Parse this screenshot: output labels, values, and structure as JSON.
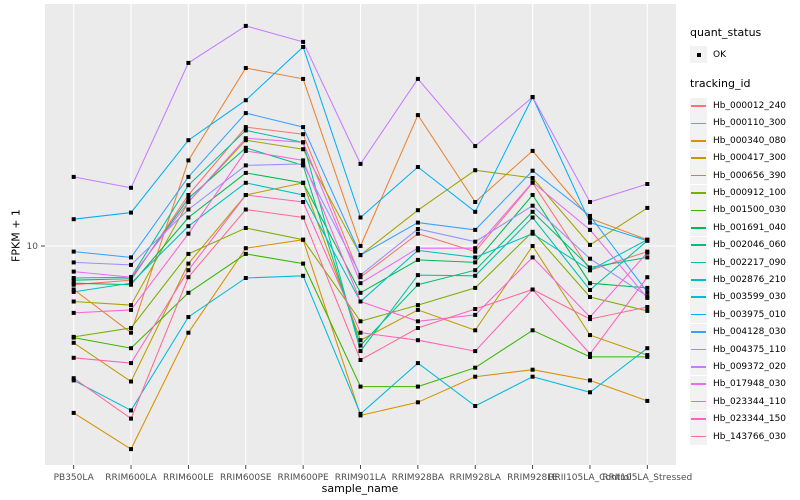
{
  "figure": {
    "background": "#FFFFFF",
    "panel_background": "#EBEBEB",
    "grid_color": "#FFFFFF",
    "tick_color": "#333333",
    "tick_label_color": "#4D4D4D",
    "marker_color": "#000000",
    "legend_key_background": "#F2F2F2"
  },
  "legend": {
    "quant_status_title": "quant_status",
    "quant_status_items": [
      {
        "label": "OK",
        "glyph": "point"
      }
    ],
    "tracking_id_title": "tracking_id"
  },
  "chart_data": {
    "type": "line",
    "title": "",
    "xlabel": "sample_name",
    "ylabel": "FPKM + 1",
    "y_scale": "log10",
    "ylim": [
      1.3,
      91
    ],
    "y_ticks": [
      {
        "value": 10,
        "label": "10"
      }
    ],
    "grid": "major",
    "legend_position": "right",
    "marker": "black-square",
    "categories": [
      "PB350LA",
      "RRIM600LA",
      "RRIM600LE",
      "RRIM600SE",
      "RRIM600PE",
      "RRIM901LA",
      "RRIM928BA",
      "RRIM928LA",
      "RRIM928LE",
      "RRII105LA_Control",
      "RRII105LA_Stressed"
    ],
    "series": [
      {
        "name": "Hb_000012_240",
        "color": "#F8766D",
        "values": [
          7.0,
          7.3,
          16.0,
          29.9,
          28.0,
          7.5,
          11.2,
          9.5,
          17.9,
          8.0,
          9.5
        ]
      },
      {
        "name": "Hb_000110_300",
        "color": "#EA8331",
        "values": [
          6.7,
          4.5,
          22.0,
          51.5,
          46.6,
          10.0,
          33.4,
          15.0,
          24.0,
          12.9,
          10.6
        ]
      },
      {
        "name": "Hb_000340_080",
        "color": "#D89000",
        "values": [
          2.15,
          1.54,
          4.5,
          9.8,
          10.6,
          2.1,
          2.37,
          3.0,
          3.2,
          2.9,
          2.4
        ]
      },
      {
        "name": "Hb_000417_300",
        "color": "#C09B00",
        "values": [
          4.1,
          2.87,
          8.5,
          16.0,
          17.9,
          4.2,
          5.55,
          4.6,
          10.0,
          4.4,
          3.66
        ]
      },
      {
        "name": "Hb_000656_390",
        "color": "#A3A500",
        "values": [
          6.0,
          5.8,
          15.0,
          26.5,
          24.4,
          9.2,
          13.9,
          20.1,
          18.7,
          10.1,
          14.2
        ]
      },
      {
        "name": "Hb_000912_100",
        "color": "#7CAE00",
        "values": [
          4.33,
          4.7,
          9.3,
          11.8,
          10.6,
          5.0,
          5.8,
          6.8,
          11.4,
          6.25,
          5.5
        ]
      },
      {
        "name": "Hb_001500_030",
        "color": "#39B600",
        "values": [
          4.3,
          3.9,
          6.5,
          9.3,
          8.5,
          2.74,
          2.74,
          3.26,
          4.6,
          3.6,
          3.6
        ]
      },
      {
        "name": "Hb_001691_040",
        "color": "#00BB4E",
        "values": [
          7.1,
          7.0,
          13.0,
          19.6,
          17.9,
          6.5,
          8.8,
          8.6,
          16.0,
          7.1,
          6.8
        ]
      },
      {
        "name": "Hb_002046_060",
        "color": "#00BF7D",
        "values": [
          7.3,
          7.4,
          15.5,
          24.7,
          21.0,
          4.0,
          7.0,
          8.0,
          13.7,
          8.2,
          9.0
        ]
      },
      {
        "name": "Hb_002217_090",
        "color": "#00C1A3",
        "values": [
          7.45,
          7.5,
          17.5,
          29.0,
          26.0,
          3.8,
          7.65,
          7.6,
          13.0,
          6.67,
          10.5
        ]
      },
      {
        "name": "Hb_002876_210",
        "color": "#00BFC4",
        "values": [
          6.55,
          7.1,
          12.0,
          17.9,
          16.0,
          6.0,
          9.6,
          9.0,
          11.2,
          8.0,
          10.6
        ]
      },
      {
        "name": "Hb_003599_030",
        "color": "#00BAE0",
        "values": [
          2.9,
          2.2,
          5.2,
          7.45,
          7.6,
          2.13,
          3.4,
          2.29,
          3.0,
          2.6,
          3.9
        ]
      },
      {
        "name": "Hb_003975_010",
        "color": "#00B0F6",
        "values": [
          12.8,
          13.6,
          26.5,
          38.3,
          62.5,
          13.0,
          20.7,
          13.7,
          39.4,
          12.4,
          10.5
        ]
      },
      {
        "name": "Hb_004128_030",
        "color": "#35A2FF",
        "values": [
          9.5,
          9.0,
          18.9,
          34.0,
          29.9,
          9.2,
          12.4,
          11.6,
          20.0,
          13.2,
          6.54
        ]
      },
      {
        "name": "Hb_004375_110",
        "color": "#9590FF",
        "values": [
          8.6,
          8.4,
          14.0,
          21.0,
          21.3,
          7.65,
          11.7,
          10.4,
          14.5,
          8.9,
          6.3
        ]
      },
      {
        "name": "Hb_009372_020",
        "color": "#C77CFF",
        "values": [
          18.9,
          17.1,
          54.0,
          75.9,
          65.5,
          21.3,
          46.6,
          25.1,
          39.4,
          15.0,
          17.7
        ]
      },
      {
        "name": "Hb_017948_030",
        "color": "#E76BF3",
        "values": [
          7.9,
          7.5,
          15.0,
          27.0,
          26.0,
          7.1,
          9.8,
          9.8,
          18.0,
          11.6,
          6.2
        ]
      },
      {
        "name": "Hb_023344_110",
        "color": "#FA62DB",
        "values": [
          5.4,
          5.55,
          11.2,
          24.0,
          22.0,
          6.0,
          5.0,
          5.3,
          9.0,
          5.2,
          9.4
        ]
      },
      {
        "name": "Hb_023344_150",
        "color": "#FF62BC",
        "values": [
          3.57,
          3.4,
          8.0,
          16.0,
          15.0,
          4.5,
          4.2,
          3.8,
          6.7,
          3.7,
          7.5
        ]
      },
      {
        "name": "Hb_143766_030",
        "color": "#FF6A98",
        "values": [
          2.96,
          2.04,
          7.5,
          14.0,
          13.0,
          3.5,
          4.7,
          5.6,
          6.7,
          5.1,
          5.7
        ]
      }
    ]
  }
}
